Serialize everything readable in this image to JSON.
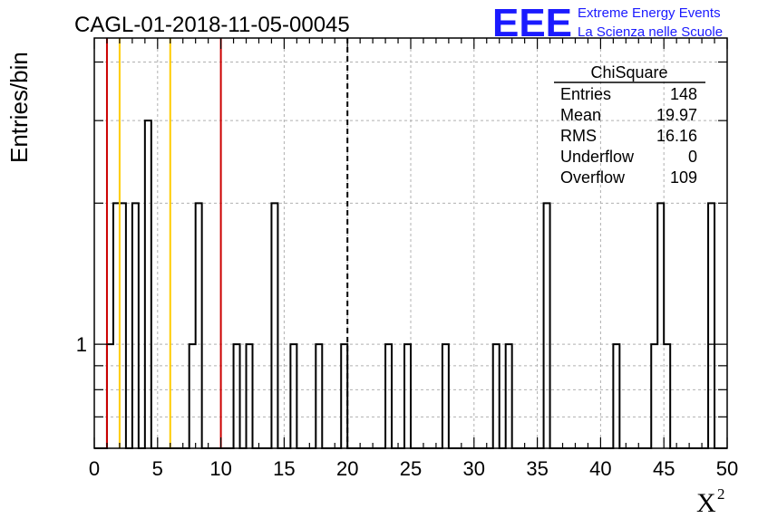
{
  "chart_data": {
    "type": "bar",
    "title": "CAGL-01-2018-11-05-00045",
    "xlabel": "X",
    "xlabel_superscript": "2",
    "ylabel": "Entries/bin",
    "x_range": [
      0,
      50
    ],
    "x_ticks": [
      "0",
      "5",
      "10",
      "15",
      "20",
      "25",
      "30",
      "35",
      "40",
      "45",
      "50"
    ],
    "y_scale": "log",
    "y_range": [
      0.6,
      4.5
    ],
    "y_tick_labels": [
      "1"
    ],
    "grid": true,
    "bin_width": 0.5,
    "bins_x_start": [
      1,
      1.5,
      2,
      3,
      4,
      7.5,
      8,
      11,
      12,
      14,
      15.5,
      17.5,
      19.5,
      23,
      24.5,
      27.5,
      31.5,
      32.5,
      35.5,
      41,
      44,
      44.5,
      45,
      48.5
    ],
    "bins_count": [
      1,
      2,
      2,
      2,
      3,
      1,
      2,
      1,
      1,
      2,
      1,
      1,
      1,
      1,
      1,
      1,
      1,
      1,
      2,
      1,
      1,
      2,
      1,
      2
    ],
    "vertical_lines": [
      {
        "x": 1,
        "color": "#cc0000",
        "style": "solid"
      },
      {
        "x": 2,
        "color": "#ffcc00",
        "style": "solid"
      },
      {
        "x": 6,
        "color": "#ffcc00",
        "style": "solid"
      },
      {
        "x": 10,
        "color": "#cc0000",
        "style": "solid"
      },
      {
        "x": 20,
        "color": "#000000",
        "style": "dashed"
      }
    ],
    "stats_box": {
      "title": "ChiSquare",
      "rows": [
        {
          "label": "Entries",
          "value": "148"
        },
        {
          "label": "Mean",
          "value": "19.97"
        },
        {
          "label": "RMS",
          "value": "16.16"
        },
        {
          "label": "Underflow",
          "value": "0"
        },
        {
          "label": "Overflow",
          "value": "109"
        }
      ]
    }
  },
  "logo": {
    "text": "EEE",
    "line1": "Extreme Energy Events",
    "line2": "La Scienza nelle Scuole",
    "color": "#1a1aff"
  }
}
